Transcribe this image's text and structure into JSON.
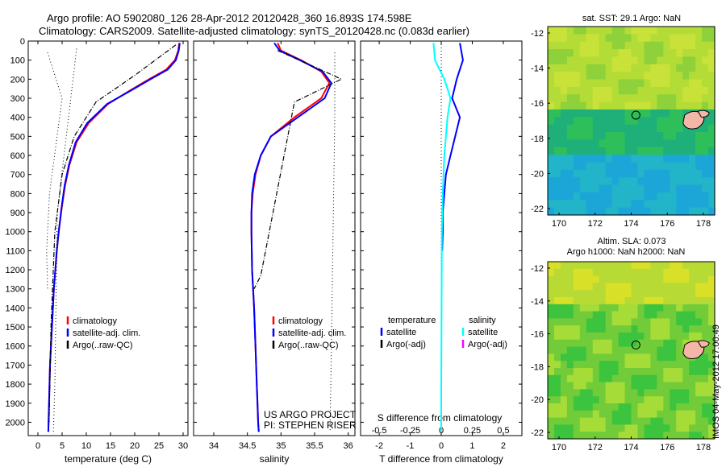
{
  "header": {
    "line1": "Argo profile: AO 5902080_126 28-Apr-2012 20120428_360 16.893S 174.598E",
    "line2": "Climatology: CARS2009. Satellite-adjusted climatology: synTS_20120428.nc (0.083d earlier)"
  },
  "side_stamp": "IMOS 04-May-2012 17:00:49",
  "credits": {
    "project": "US ARGO PROJECT",
    "pi": "PI: STEPHEN RISER"
  },
  "colors": {
    "climatology": "#ff0000",
    "satellite": "#0000ff",
    "argo": "#000000",
    "salinity_satellite": "#00ffff",
    "salinity_argo": "#ff00ff"
  },
  "chart_data": [
    {
      "type": "line",
      "name": "temperature-profile",
      "xlabel": "temperature (deg C)",
      "xlim": [
        -2,
        31
      ],
      "ylim": [
        2070,
        0
      ],
      "xticks": [
        0,
        5,
        10,
        15,
        20,
        25,
        30
      ],
      "yticks": [
        0,
        100,
        200,
        300,
        400,
        500,
        600,
        700,
        800,
        900,
        1000,
        1100,
        1200,
        1300,
        1400,
        1500,
        1600,
        1700,
        1800,
        1900,
        2000
      ],
      "legend": [
        "climatology",
        "satellite-adj. clim.",
        "Argo(..raw-QC)"
      ],
      "series": [
        {
          "name": "climatology",
          "x": [
            29.2,
            29,
            28.3,
            26.5,
            23,
            19,
            14.5,
            10.5,
            8,
            6.5,
            5.6,
            4.9,
            4.3,
            3.9,
            3.6,
            3.3,
            3.1,
            2.9,
            2.7,
            2.5,
            2.4,
            2.3,
            2.2,
            2.15
          ],
          "y": [
            10,
            50,
            100,
            150,
            200,
            260,
            330,
            430,
            530,
            650,
            760,
            880,
            1000,
            1100,
            1200,
            1300,
            1400,
            1500,
            1600,
            1700,
            1800,
            1900,
            2000,
            2050
          ]
        },
        {
          "name": "satellite-adj. clim.",
          "x": [
            29.3,
            29.1,
            28.5,
            26.8,
            23.3,
            19.2,
            14.3,
            10.2,
            7.8,
            6.4,
            5.5,
            4.85,
            4.3,
            3.9,
            3.6,
            3.3,
            3.1,
            2.9,
            2.7,
            2.5,
            2.4,
            2.3,
            2.2,
            2.15
          ],
          "y": [
            10,
            50,
            100,
            150,
            200,
            260,
            330,
            430,
            530,
            650,
            760,
            880,
            1000,
            1100,
            1200,
            1300,
            1400,
            1500,
            1600,
            1700,
            1800,
            1900,
            2000,
            2050
          ]
        },
        {
          "name": "Argo(..raw-QC)",
          "x": [
            28.5,
            20,
            12,
            7.5,
            5,
            3.5,
            2.7,
            2.3
          ],
          "y": [
            20,
            180,
            320,
            500,
            700,
            1000,
            1500,
            2000
          ]
        }
      ]
    },
    {
      "type": "line",
      "name": "salinity-profile",
      "xlabel": "salinity",
      "xlim": [
        33.7,
        36.1
      ],
      "ylim": [
        2070,
        0
      ],
      "xticks": [
        34,
        34.5,
        35,
        35.5,
        36
      ],
      "legend": [
        "climatology",
        "satellite-adj. clim.",
        "Argo(..raw-QC)"
      ],
      "series": [
        {
          "name": "climatology",
          "x": [
            34.95,
            35.0,
            35.3,
            35.6,
            35.72,
            35.6,
            35.2,
            34.85,
            34.7,
            34.62,
            34.58,
            34.56,
            34.56,
            34.57,
            34.6,
            34.62,
            34.64,
            34.65,
            34.66,
            34.67
          ],
          "y": [
            10,
            50,
            100,
            160,
            220,
            300,
            400,
            500,
            600,
            700,
            800,
            900,
            1000,
            1200,
            1400,
            1600,
            1800,
            1900,
            2000,
            2050
          ]
        },
        {
          "name": "satellite-adj. clim.",
          "x": [
            34.9,
            34.98,
            35.28,
            35.62,
            35.75,
            35.65,
            35.25,
            34.85,
            34.7,
            34.61,
            34.57,
            34.56,
            34.56,
            34.57,
            34.6,
            34.62,
            34.64,
            34.65,
            34.66,
            34.67
          ],
          "y": [
            10,
            50,
            100,
            160,
            220,
            300,
            400,
            500,
            600,
            700,
            800,
            900,
            1000,
            1200,
            1400,
            1600,
            1800,
            1900,
            2000,
            2050
          ]
        },
        {
          "name": "Argo(..raw-QC)",
          "x": [
            34.95,
            35.4,
            35.9,
            35.2,
            34.7,
            34.6
          ],
          "y": [
            50,
            120,
            200,
            320,
            1230,
            1300
          ]
        }
      ]
    },
    {
      "type": "line",
      "name": "difference-profile",
      "xlabel": "T difference from climatology",
      "xlabel_top": "S difference from climatology",
      "xlim": [
        -2.6,
        2.6
      ],
      "ylim": [
        2070,
        0
      ],
      "xticks": [
        -2,
        -1,
        0,
        1,
        2
      ],
      "xticks_top": [
        -0.5,
        -0.25,
        0,
        0.25,
        0.5
      ],
      "legend_headers": [
        "temperature",
        "salinity"
      ],
      "legend": [
        "satellite",
        "Argo(-adj)",
        "satellite",
        "Argo(-adj)"
      ],
      "series": [
        {
          "name": "temperature satellite",
          "x": [
            0.6,
            0.7,
            0.5,
            0.35,
            0.6,
            0.45,
            0.3,
            0.15,
            0.1,
            0.05,
            0.05,
            0.03
          ],
          "y": [
            10,
            100,
            200,
            300,
            400,
            500,
            600,
            700,
            800,
            900,
            1000,
            1100
          ]
        },
        {
          "name": "salinity satellite",
          "x": [
            -0.25,
            -0.2,
            0.1,
            0.3,
            0.2,
            0.15,
            0.1,
            0.05,
            0.02,
            0.01,
            0,
            0
          ],
          "y": [
            10,
            100,
            200,
            300,
            400,
            500,
            600,
            800,
            1000,
            1400,
            1800,
            2050
          ]
        }
      ]
    },
    {
      "type": "heatmap",
      "name": "sst-map",
      "title": "sat. SST: 29.1  Argo: NaN",
      "xticks": [
        170,
        172,
        174,
        176,
        178
      ],
      "yticks": [
        -12,
        -14,
        -16,
        -18,
        -20,
        -22
      ]
    },
    {
      "type": "heatmap",
      "name": "sla-map",
      "title": "Altim. SLA: 0.073",
      "subtitle": "Argo h1000: NaN h2000: NaN",
      "xticks": [
        170,
        172,
        174,
        176,
        178
      ],
      "yticks": [
        -12,
        -14,
        -16,
        -18,
        -20,
        -22
      ]
    }
  ]
}
